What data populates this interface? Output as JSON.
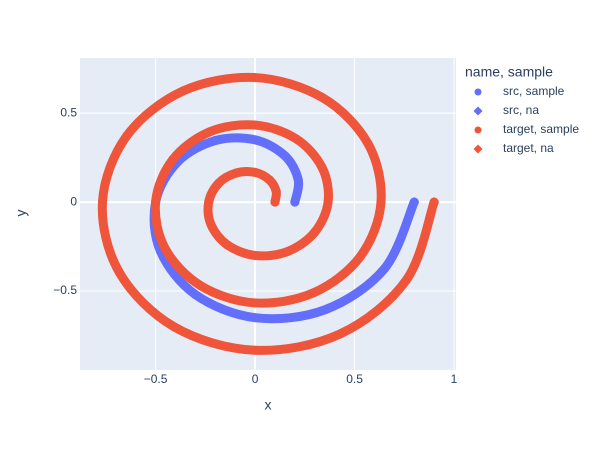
{
  "chart_data": {
    "type": "scatter",
    "xlabel": "x",
    "ylabel": "y",
    "legend_title": "name, sample",
    "legend": "right",
    "grid": true,
    "xlim": [
      -0.88,
      1.01
    ],
    "ylim": [
      -0.944,
      0.81
    ],
    "xticks": [
      {
        "value": -0.5,
        "label": "−0.5"
      },
      0,
      0.5,
      1
    ],
    "yticks": [
      {
        "value": -0.5,
        "label": "−0.5"
      },
      0,
      0.5
    ],
    "series": [
      {
        "name": "src, sample",
        "color": "#636efa",
        "symbol": "circle",
        "x": [
          0.2,
          0.217,
          0.15,
          0,
          -0.2,
          -0.39,
          -0.5,
          -0.476,
          -0.3,
          0,
          0.35,
          0.65,
          0.8
        ],
        "y": [
          0,
          0.125,
          0.26,
          0.35,
          0.346,
          0.225,
          0,
          -0.275,
          -0.52,
          -0.65,
          -0.606,
          -0.375,
          0
        ]
      },
      {
        "name": "src, na",
        "color": "#636efa",
        "symbol": "diamond",
        "x": [
          0.8
        ],
        "y": [
          0
        ]
      },
      {
        "name": "target, sample",
        "color": "#ef553b",
        "symbol": "circle",
        "x": [
          0.1,
          0.106,
          0.072,
          0,
          -0.094,
          -0.183,
          -0.233,
          -0.221,
          -0.139,
          0,
          0.161,
          0.298,
          0.367,
          0.337,
          0.206,
          0,
          -0.228,
          -0.414,
          -0.5,
          -0.452,
          -0.272,
          0,
          0.294,
          0.529,
          0.633,
          0.568,
          0.339,
          0,
          -0.361,
          -0.645,
          -0.767,
          -0.683,
          -0.406,
          0,
          0.428,
          0.76,
          0.9
        ],
        "y": [
          0,
          0.061,
          0.125,
          0.167,
          0.164,
          0.106,
          0,
          -0.128,
          -0.241,
          -0.3,
          -0.279,
          -0.172,
          0,
          0.194,
          0.356,
          0.433,
          0.395,
          0.239,
          0,
          -0.261,
          -0.471,
          -0.567,
          -0.51,
          -0.306,
          0,
          0.328,
          0.587,
          0.7,
          0.625,
          0.372,
          0,
          -0.394,
          -0.702,
          -0.833,
          -0.741,
          -0.439,
          0
        ]
      },
      {
        "name": "target, na",
        "color": "#ef553b",
        "symbol": "diamond",
        "x": [
          0.9
        ],
        "y": [
          0
        ]
      }
    ]
  }
}
